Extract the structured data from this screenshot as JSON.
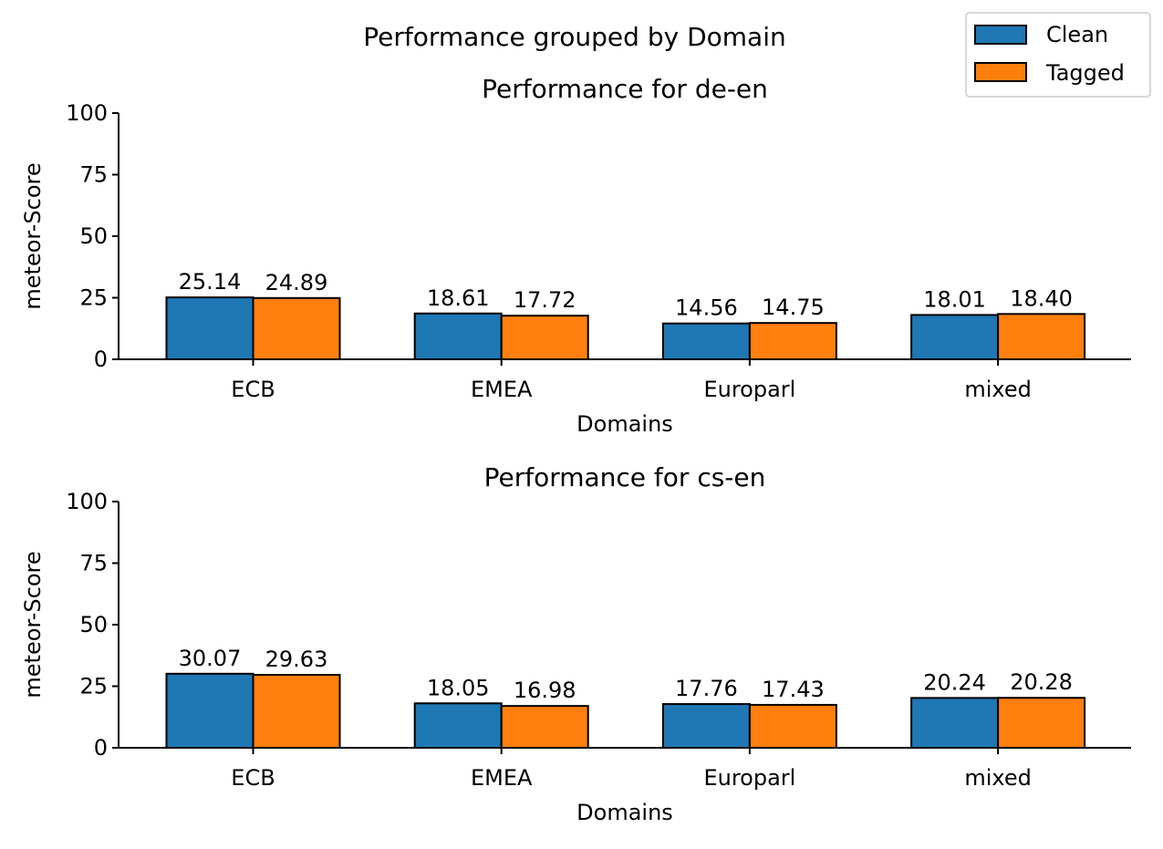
{
  "figure": {
    "title": "Performance grouped by Domain"
  },
  "legend": {
    "placement": "upper right of figure",
    "entries": [
      "Clean",
      "Tagged"
    ]
  },
  "colors": {
    "Clean": "#1f77b4",
    "Tagged": "#ff7f0e",
    "edge": "#000000"
  },
  "chart_data": [
    {
      "type": "bar",
      "title": "Performance for de-en",
      "xlabel": "Domains",
      "ylabel": "meteor-Score",
      "ylim": [
        0,
        100
      ],
      "yticks": [
        0,
        25,
        50,
        75,
        100
      ],
      "categories": [
        "ECB",
        "EMEA",
        "Europarl",
        "mixed"
      ],
      "series": [
        {
          "name": "Clean",
          "values": [
            25.14,
            18.61,
            14.56,
            18.01
          ],
          "labels": [
            "25.14",
            "18.61",
            "14.56",
            "18.01"
          ]
        },
        {
          "name": "Tagged",
          "values": [
            24.89,
            17.72,
            14.75,
            18.4
          ],
          "labels": [
            "24.89",
            "17.72",
            "14.75",
            "18.40"
          ]
        }
      ],
      "grid": false
    },
    {
      "type": "bar",
      "title": "Performance for cs-en",
      "xlabel": "Domains",
      "ylabel": "meteor-Score",
      "ylim": [
        0,
        100
      ],
      "yticks": [
        0,
        25,
        50,
        75,
        100
      ],
      "categories": [
        "ECB",
        "EMEA",
        "Europarl",
        "mixed"
      ],
      "series": [
        {
          "name": "Clean",
          "values": [
            30.07,
            18.05,
            17.76,
            20.24
          ],
          "labels": [
            "30.07",
            "18.05",
            "17.76",
            "20.24"
          ]
        },
        {
          "name": "Tagged",
          "values": [
            29.63,
            16.98,
            17.43,
            20.28
          ],
          "labels": [
            "29.63",
            "16.98",
            "17.43",
            "20.28"
          ]
        }
      ],
      "grid": false
    }
  ]
}
